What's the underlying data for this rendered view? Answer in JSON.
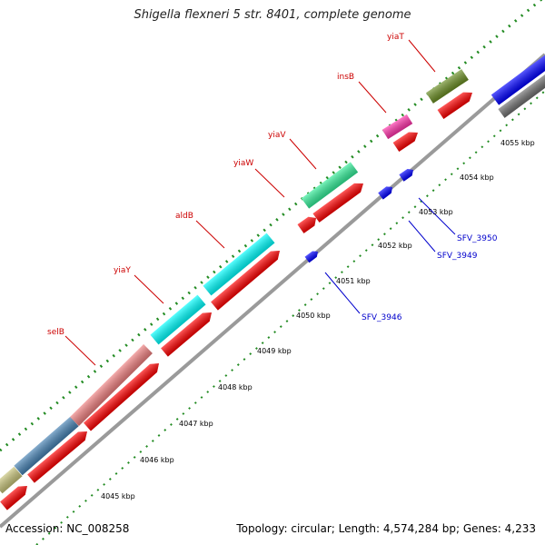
{
  "title": "Shigella flexneri 5 str. 8401, complete genome",
  "footer": {
    "accession": "Accession: NC_008258",
    "summary": "Topology: circular; Length: 4,574,284 bp; Genes: 4,233"
  },
  "colors": {
    "backbone": "#a0a0a0",
    "cds_red": "#ff0000",
    "tick_green": "#228b22",
    "gene_blue": "#0000ff",
    "label_red": "#cc0000",
    "label_blue": "#0000cc"
  },
  "ticks": [
    {
      "label": "4045 kbp"
    },
    {
      "label": "4046 kbp"
    },
    {
      "label": "4047 kbp"
    },
    {
      "label": "4048 kbp"
    },
    {
      "label": "4049 kbp"
    },
    {
      "label": "4050 kbp"
    },
    {
      "label": "4051 kbp"
    },
    {
      "label": "4052 kbp"
    },
    {
      "label": "4053 kbp"
    },
    {
      "label": "4054 kbp"
    },
    {
      "label": "4055 kbp"
    }
  ],
  "gene_labels": [
    {
      "name": "selB",
      "color": "red"
    },
    {
      "name": "yiaY",
      "color": "red"
    },
    {
      "name": "aldB",
      "color": "red"
    },
    {
      "name": "yiaW",
      "color": "red"
    },
    {
      "name": "yiaV",
      "color": "red"
    },
    {
      "name": "insB",
      "color": "red"
    },
    {
      "name": "yiaT",
      "color": "red"
    },
    {
      "name": "SFV_3946",
      "color": "blue"
    },
    {
      "name": "SFV_3949",
      "color": "blue"
    },
    {
      "name": "SFV_3950",
      "color": "blue"
    }
  ],
  "feature_colors": {
    "olive": "#c8c47a",
    "steel_blue": "#4682b4",
    "light_coral": "#f08080",
    "cyan": "#00ffff",
    "spring_green": "#33ee99",
    "pink": "#ff33aa",
    "olive_drab": "#6b8e23",
    "blue": "#0000ff",
    "gray": "#707070"
  }
}
